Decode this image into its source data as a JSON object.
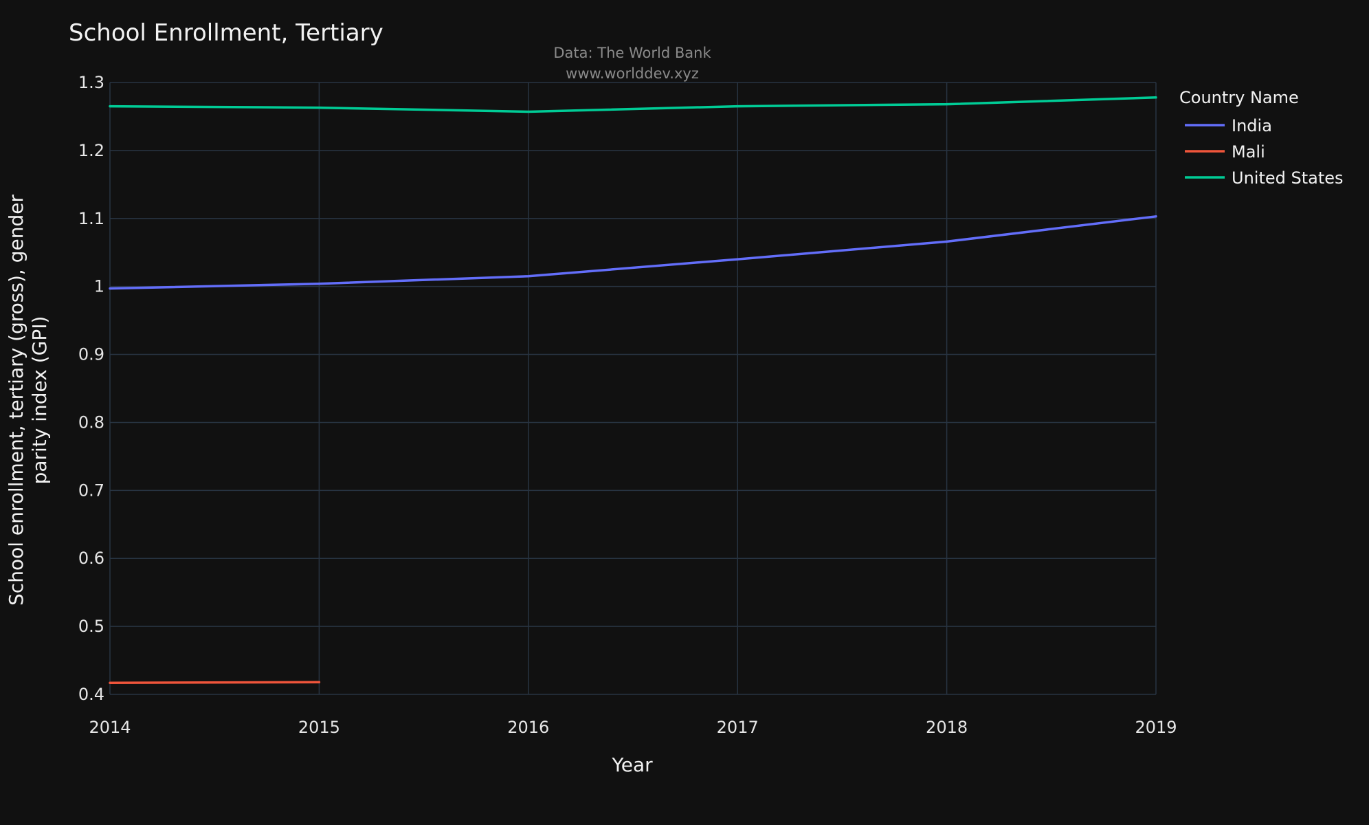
{
  "chart_data": {
    "type": "line",
    "title": "School Enrollment, Tertiary",
    "subtitle_lines": [
      "Data: The World Bank",
      "www.worlddev.xyz"
    ],
    "xlabel": "Year",
    "ylabel_lines": [
      "School enrollment, tertiary (gross), gender",
      "parity index (GPI)"
    ],
    "x_ticks": [
      2014,
      2015,
      2016,
      2017,
      2018,
      2019
    ],
    "y_ticks": [
      0.4,
      0.5,
      0.6,
      0.7,
      0.8,
      0.9,
      1,
      1.1,
      1.2,
      1.3
    ],
    "y_tick_labels": [
      "0.4",
      "0.5",
      "0.6",
      "0.7",
      "0.8",
      "0.9",
      "1",
      "1.1",
      "1.2",
      "1.3"
    ],
    "xlim": [
      2014,
      2019
    ],
    "ylim": [
      0.4,
      1.3
    ],
    "grid": true,
    "legend_title": "Country Name",
    "legend_position": "top-right",
    "series": [
      {
        "name": "India",
        "color": "#636efa",
        "x": [
          2014,
          2015,
          2016,
          2017,
          2018,
          2019
        ],
        "y": [
          0.997,
          1.004,
          1.015,
          1.04,
          1.066,
          1.103
        ]
      },
      {
        "name": "Mali",
        "color": "#ef553b",
        "x": [
          2014,
          2015
        ],
        "y": [
          0.417,
          0.418
        ]
      },
      {
        "name": "United States",
        "color": "#00cc96",
        "x": [
          2014,
          2015,
          2016,
          2017,
          2018,
          2019
        ],
        "y": [
          1.265,
          1.263,
          1.257,
          1.265,
          1.268,
          1.278
        ]
      }
    ]
  }
}
